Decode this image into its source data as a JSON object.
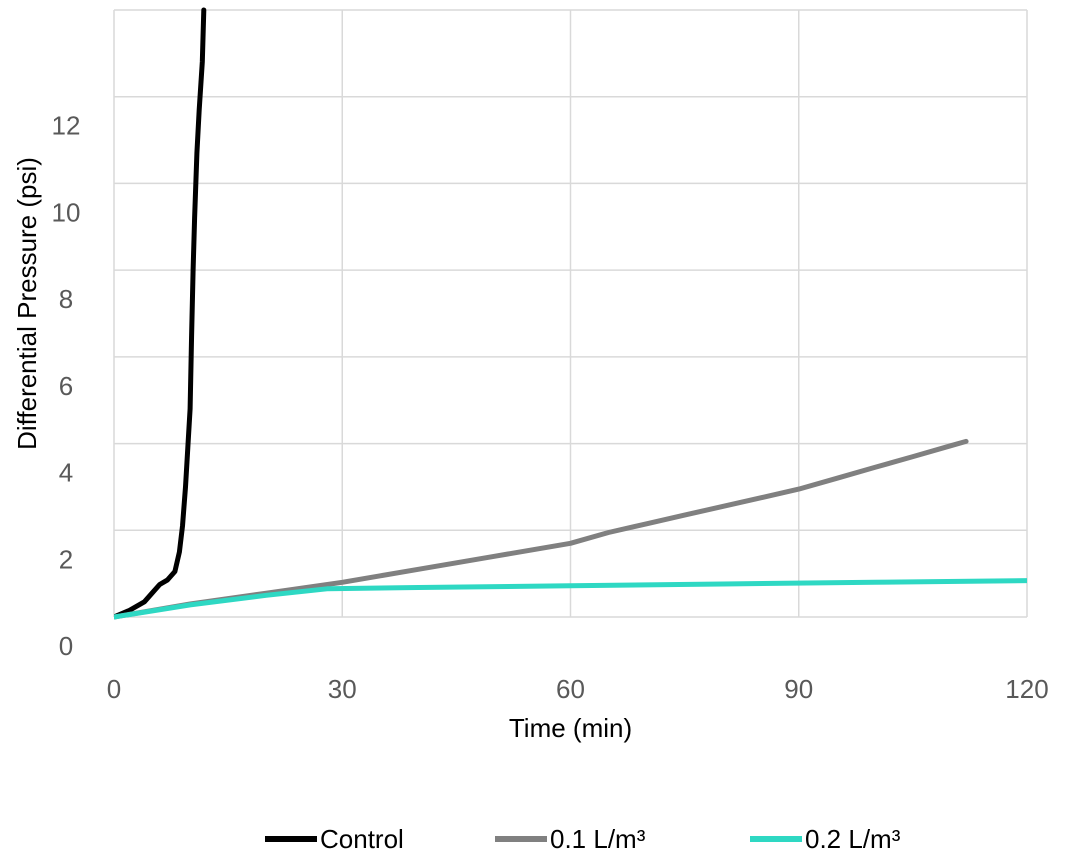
{
  "chart_data": {
    "type": "line",
    "xlabel": "Time (min)",
    "ylabel": "Differential Pressure (psi)",
    "xlim": [
      0,
      120
    ],
    "ylim": [
      0,
      14
    ],
    "x_ticks": [
      "0",
      "30",
      "60",
      "90",
      "120"
    ],
    "y_ticks": [
      "0",
      "2",
      "4",
      "6",
      "8",
      "10",
      "12"
    ],
    "grid": true,
    "legend_position": "bottom",
    "series": [
      {
        "name": "Control",
        "color": "#000000",
        "x": [
          0,
          2,
          4,
          5,
          6,
          7,
          8,
          8.6,
          9.0,
          9.4,
          9.7,
          10.0,
          10.2,
          10.4,
          10.6,
          10.9,
          11.2,
          11.6,
          11.8
        ],
        "y": [
          0,
          0.15,
          0.35,
          0.55,
          0.75,
          0.85,
          1.05,
          1.5,
          2.1,
          3.0,
          3.9,
          4.8,
          6.5,
          8.0,
          9.2,
          10.7,
          11.7,
          12.8,
          14.0
        ]
      },
      {
        "name": "0.1 L/m³",
        "color": "#808080",
        "x": [
          0,
          10,
          20,
          30,
          35,
          40,
          45,
          50,
          55,
          60,
          65,
          70,
          75,
          80,
          85,
          90,
          95,
          100,
          105,
          110,
          112
        ],
        "y": [
          0,
          0.3,
          0.55,
          0.8,
          0.95,
          1.1,
          1.25,
          1.4,
          1.55,
          1.7,
          1.95,
          2.15,
          2.35,
          2.55,
          2.75,
          2.95,
          3.2,
          3.45,
          3.7,
          3.95,
          4.05
        ]
      },
      {
        "name": "0.2 L/m³",
        "color": "#2ed8c3",
        "x": [
          0,
          10,
          20,
          28,
          40,
          60,
          80,
          100,
          120
        ],
        "y": [
          0,
          0.28,
          0.5,
          0.65,
          0.68,
          0.72,
          0.76,
          0.8,
          0.84
        ]
      }
    ]
  }
}
